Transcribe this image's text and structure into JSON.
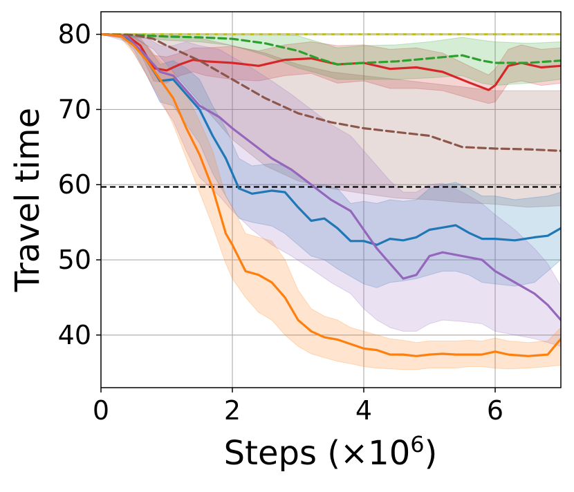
{
  "chart_data": {
    "type": "line",
    "title": "",
    "xlabel": "Steps (×10",
    "xlabel_sup": "6",
    "xlabel_close": ")",
    "ylabel": "Travel time",
    "xlim": [
      0,
      7
    ],
    "ylim": [
      33,
      83
    ],
    "xticks": [
      0,
      2,
      4,
      6
    ],
    "xtick_labels": [
      "0",
      "2",
      "4",
      "6"
    ],
    "yticks": [
      40,
      50,
      60,
      70,
      80
    ],
    "ytick_labels": [
      "40",
      "50",
      "60",
      "70",
      "80"
    ],
    "grid": true,
    "legend": "none",
    "reference_lines": [
      {
        "y": 59.7,
        "color": "#000000",
        "style": "dashed"
      },
      {
        "y": 80.0,
        "color": "#bcbd22",
        "style": "solid"
      },
      {
        "y": 80.0,
        "color": "#c7c7c7",
        "style": "dashed"
      }
    ],
    "series": [
      {
        "color": "#d62728",
        "style": "solid",
        "x": [
          0,
          0.4,
          0.6,
          0.8,
          1.0,
          1.2,
          1.4,
          1.6,
          2.0,
          2.4,
          2.8,
          3.2,
          3.6,
          4.0,
          4.4,
          4.8,
          5.2,
          5.6,
          5.9,
          6.0,
          6.2,
          6.4,
          6.7,
          7.0
        ],
        "y": [
          80,
          79.8,
          78.5,
          75.5,
          75.2,
          76.0,
          76.6,
          76.4,
          76.2,
          75.8,
          76.6,
          76.8,
          76.0,
          76.2,
          75.4,
          75.6,
          75.0,
          73.6,
          72.6,
          73.2,
          75.8,
          76.2,
          75.6,
          75.8
        ],
        "lower": [
          80,
          79.5,
          77.5,
          73.8,
          73.5,
          74.5,
          75.0,
          74.5,
          74.0,
          73.8,
          74.5,
          74.8,
          73.5,
          73.8,
          72.8,
          72.8,
          72.5,
          71.5,
          70.8,
          71.0,
          73.5,
          73.8,
          73.2,
          73.5
        ],
        "upper": [
          80,
          80,
          79.5,
          77.2,
          77.0,
          77.5,
          78.2,
          78.2,
          78.4,
          77.8,
          78.6,
          79.0,
          78.5,
          78.6,
          78.0,
          78.2,
          77.5,
          75.8,
          74.6,
          75.4,
          78.0,
          78.6,
          78.0,
          78.2
        ]
      },
      {
        "color": "#2ca02c",
        "style": "dashed",
        "x": [
          0,
          0.5,
          1.0,
          1.5,
          2.0,
          2.5,
          3.0,
          3.3,
          3.6,
          4.0,
          4.5,
          5.0,
          5.5,
          5.8,
          6.0,
          6.5,
          7.0
        ],
        "y": [
          80,
          79.9,
          79.7,
          79.6,
          79.4,
          78.8,
          77.8,
          76.8,
          76.0,
          76.2,
          76.4,
          76.8,
          77.2,
          76.5,
          76.2,
          76.2,
          76.5
        ],
        "lower": [
          80,
          79.6,
          79.2,
          79.0,
          78.5,
          77.2,
          75.5,
          74.8,
          74.0,
          74.0,
          74.0,
          74.2,
          74.5,
          73.5,
          73.2,
          73.5,
          74.0
        ],
        "upper": [
          80,
          80,
          80,
          80,
          80,
          80,
          79.8,
          79.0,
          78.2,
          78.5,
          78.6,
          79.0,
          79.6,
          79.2,
          79.0,
          78.8,
          79.0
        ]
      },
      {
        "color": "#8c564b",
        "style": "dashed",
        "x": [
          0,
          0.5,
          0.8,
          1.0,
          1.5,
          2.0,
          2.5,
          3.0,
          3.5,
          4.0,
          4.5,
          5.0,
          5.5,
          6.0,
          6.5,
          7.0
        ],
        "y": [
          80,
          79.9,
          79.4,
          78.5,
          76.5,
          74.0,
          71.5,
          69.5,
          68.3,
          67.5,
          67.0,
          66.5,
          65.0,
          64.8,
          64.7,
          64.5
        ],
        "lower": [
          80,
          79.5,
          78.0,
          76.0,
          71.0,
          66.0,
          62.5,
          60.5,
          59.5,
          58.8,
          58.2,
          58.0,
          57.6,
          57.4,
          57.0,
          57.2
        ],
        "upper": [
          80,
          80,
          80,
          80,
          79.5,
          78.5,
          77.5,
          76.0,
          75.0,
          74.5,
          74.0,
          73.5,
          73.0,
          72.5,
          72.5,
          72.5
        ]
      },
      {
        "color": "#1f77b4",
        "style": "solid",
        "x": [
          0,
          0.3,
          0.5,
          0.7,
          0.9,
          1.1,
          1.3,
          1.5,
          1.7,
          1.9,
          2.1,
          2.3,
          2.6,
          2.8,
          3.0,
          3.2,
          3.4,
          3.6,
          3.8,
          4.0,
          4.2,
          4.4,
          4.6,
          4.8,
          5.0,
          5.2,
          5.4,
          5.6,
          5.8,
          6.0,
          6.3,
          6.6,
          6.8,
          7.0
        ],
        "y": [
          80,
          79.8,
          78.8,
          76.5,
          73.8,
          74.0,
          72.0,
          70.0,
          66.5,
          63.5,
          59.5,
          58.8,
          59.2,
          59.0,
          57.0,
          55.2,
          55.5,
          54.2,
          52.5,
          52.5,
          52.0,
          52.8,
          52.6,
          53.0,
          54.0,
          54.3,
          54.6,
          53.6,
          52.8,
          52.8,
          52.6,
          53.0,
          53.2,
          54.2
        ],
        "lower": [
          80,
          79.5,
          78.0,
          74.5,
          71.0,
          70.5,
          68.0,
          65.5,
          61.5,
          58.5,
          55.5,
          55.0,
          54.5,
          53.5,
          52.0,
          50.5,
          50.0,
          48.8,
          47.8,
          46.8,
          46.3,
          47.0,
          47.2,
          47.5,
          48.0,
          48.5,
          48.5,
          48.0,
          47.0,
          46.8,
          46.5,
          47.0,
          48.5,
          50.0
        ],
        "upper": [
          80,
          80,
          79.8,
          78.5,
          76.0,
          76.5,
          75.5,
          74.0,
          70.5,
          67.5,
          63.5,
          62.5,
          62.8,
          62.5,
          61.5,
          60.0,
          60.0,
          59.5,
          57.5,
          57.8,
          57.5,
          58.0,
          57.8,
          58.0,
          59.5,
          60.0,
          60.3,
          59.5,
          58.5,
          58.5,
          58.0,
          58.3,
          58.5,
          59.0
        ]
      },
      {
        "color": "#9467bd",
        "style": "solid",
        "x": [
          0,
          0.4,
          0.7,
          0.9,
          1.1,
          1.3,
          1.5,
          1.8,
          2.0,
          2.3,
          2.6,
          2.9,
          3.2,
          3.5,
          3.8,
          4.0,
          4.2,
          4.4,
          4.6,
          4.8,
          5.0,
          5.2,
          5.5,
          5.8,
          6.0,
          6.3,
          6.6,
          6.8,
          7.0
        ],
        "y": [
          80,
          79.7,
          77.0,
          75.0,
          74.5,
          72.5,
          70.5,
          69.0,
          67.5,
          65.5,
          63.5,
          62.0,
          60.0,
          58.0,
          56.5,
          54.0,
          51.5,
          49.5,
          47.5,
          48.0,
          50.5,
          51.0,
          50.5,
          50.0,
          48.5,
          47.0,
          45.5,
          44.0,
          42.0
        ],
        "lower": [
          80,
          79.0,
          74.5,
          71.0,
          68.5,
          64.5,
          61.0,
          58.5,
          56.5,
          54.0,
          52.0,
          50.5,
          48.8,
          47.0,
          45.5,
          43.5,
          42.0,
          41.0,
          40.5,
          40.5,
          41.5,
          42.0,
          41.8,
          41.5,
          40.5,
          40.0,
          39.5,
          39.0,
          38.5
        ],
        "upper": [
          80,
          80,
          79.5,
          78.5,
          78.5,
          79.0,
          78.5,
          78.0,
          77.0,
          75.5,
          73.8,
          72.0,
          70.0,
          68.0,
          66.5,
          64.5,
          62.5,
          60.5,
          59.0,
          59.0,
          60.0,
          60.2,
          59.0,
          57.5,
          56.0,
          54.0,
          51.5,
          49.5,
          46.5
        ]
      },
      {
        "color": "#ff7f0e",
        "style": "solid",
        "x": [
          0,
          0.3,
          0.5,
          0.7,
          0.9,
          1.1,
          1.3,
          1.5,
          1.7,
          1.9,
          2.0,
          2.2,
          2.4,
          2.6,
          2.8,
          3.0,
          3.2,
          3.4,
          3.6,
          3.8,
          4.0,
          4.2,
          4.4,
          4.6,
          4.8,
          5.0,
          5.2,
          5.4,
          5.6,
          5.8,
          6.0,
          6.2,
          6.5,
          6.8,
          7.0
        ],
        "y": [
          80,
          79.8,
          78.5,
          76.5,
          74.0,
          71.5,
          67.5,
          64.0,
          59.5,
          53.5,
          52.0,
          48.5,
          48.0,
          47.0,
          45.0,
          42.0,
          40.5,
          39.7,
          39.4,
          38.8,
          38.2,
          38.0,
          37.4,
          37.4,
          37.2,
          37.4,
          37.5,
          37.4,
          37.4,
          37.4,
          37.8,
          37.4,
          37.2,
          37.4,
          39.5
        ],
        "lower": [
          80,
          79.5,
          77.5,
          74.5,
          71.5,
          68.0,
          63.5,
          59.0,
          54.5,
          49.5,
          47.5,
          45.0,
          43.0,
          42.0,
          40.0,
          38.5,
          37.5,
          37.0,
          36.5,
          36.2,
          35.8,
          35.6,
          35.5,
          35.4,
          35.4,
          35.6,
          35.6,
          35.6,
          35.8,
          35.8,
          35.6,
          35.5,
          35.6,
          35.8,
          36.0
        ],
        "upper": [
          80,
          80,
          79.5,
          78.5,
          76.5,
          75.0,
          72.0,
          68.5,
          64.5,
          58.5,
          57.0,
          53.5,
          53.0,
          52.5,
          50.0,
          46.0,
          43.5,
          42.5,
          42.0,
          41.0,
          40.5,
          40.0,
          39.5,
          39.3,
          39.0,
          39.2,
          39.2,
          39.2,
          39.3,
          39.2,
          39.6,
          39.2,
          39.0,
          39.2,
          41.0
        ]
      }
    ]
  }
}
